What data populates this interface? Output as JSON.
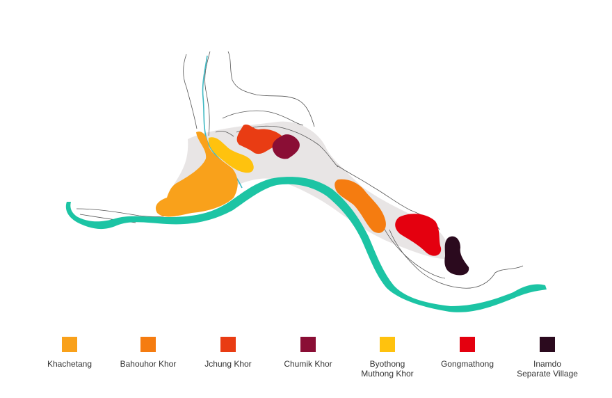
{
  "legend": [
    {
      "label": "Khachetang",
      "color": "#f9a11b"
    },
    {
      "label": "Bahouhor Khor",
      "color": "#f57c10"
    },
    {
      "label": "Jchung Khor",
      "color": "#e93c13"
    },
    {
      "label": "Chumik Khor",
      "color": "#8a0e35"
    },
    {
      "label": "Byothong\nMuthong Khor",
      "color": "#ffc20e"
    },
    {
      "label": "Gongmathong",
      "color": "#e4000f"
    },
    {
      "label": "Inamdo\nSeparate Village",
      "color": "#2b0a1e"
    }
  ],
  "colors": {
    "river": "#1cc4a4",
    "stream": "#3fb8c2",
    "valley": "#e8e5e5",
    "contour": "#555555"
  }
}
